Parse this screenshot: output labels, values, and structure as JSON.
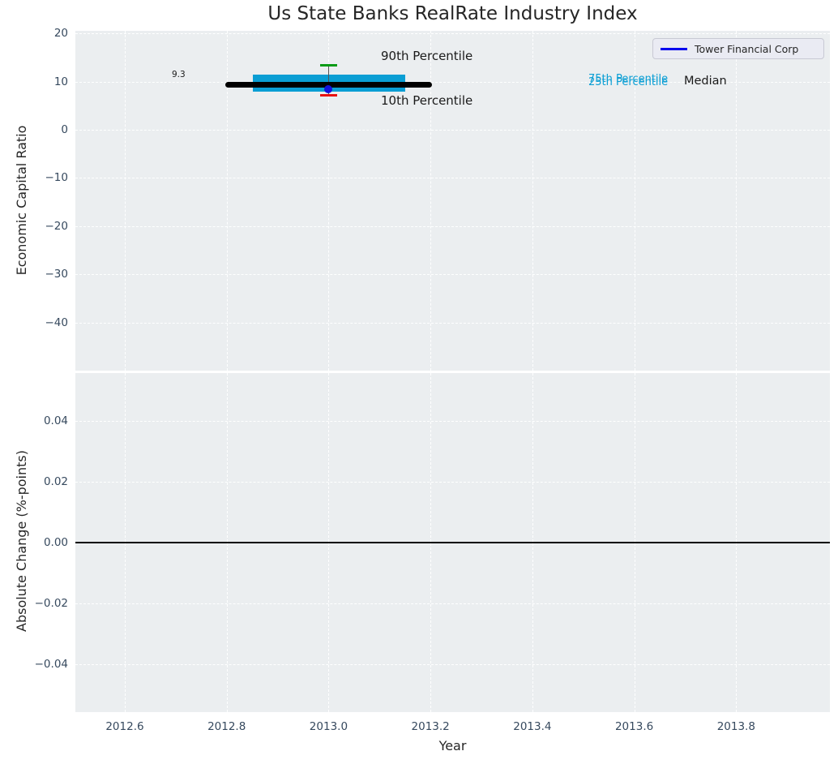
{
  "figure": {
    "background": "#ffffff",
    "plot_background": "#ebeef0",
    "grid_color": "#ffffff",
    "tick_color": "#36495e",
    "text_color": "#262626"
  },
  "chart_data": [
    {
      "type": "box-timeline",
      "title": "Us State Banks RealRate Industry Index",
      "xlabel": "Year",
      "ylabel": "Economic Capital Ratio",
      "xlim": [
        2012.503,
        2013.984
      ],
      "ylim": [
        -50.0,
        20.54
      ],
      "grid": "white-dashed",
      "legend": {
        "label": "Tower Financial Corp",
        "line_color": "#0000ee",
        "position": "upper-right"
      },
      "xticks": {
        "values": [
          2012.6,
          2012.8,
          2013.0,
          2013.2,
          2013.4,
          2013.6,
          2013.8
        ],
        "labels": [
          "2012.6",
          "2012.8",
          "2013.0",
          "2013.2",
          "2013.4",
          "2013.6",
          "2013.8"
        ]
      },
      "yticks": {
        "values": [
          20,
          10,
          0,
          -10,
          -20,
          -30,
          -40
        ],
        "labels": [
          "20",
          "10",
          "0",
          "−10",
          "−20",
          "−30",
          "−40"
        ]
      },
      "series": [
        {
          "name": "Tower Financial Corp",
          "x": 2013.0,
          "y": 8.4,
          "marker": "circle",
          "color": "#1212dd"
        }
      ],
      "industry_box": {
        "year": 2013.0,
        "median": 9.3,
        "p75": 11.4,
        "p25": 7.9,
        "p90": 13.4,
        "p10": 7.1,
        "median_span": [
          2012.797,
          2013.203
        ],
        "box_span": [
          2012.852,
          2013.15
        ],
        "cap_span": [
          2012.983,
          2013.017
        ],
        "median_color": "#000000",
        "box_color": "#0a9ed4",
        "p90_color": "#089b16",
        "p10_color": "#e81111"
      },
      "annotations": {
        "median_value": "9.3",
        "p90": "90th Percentile",
        "p10": "10th Percentile",
        "p75": "75th Percentile",
        "p25": "25th Percentile",
        "median": "Median"
      }
    },
    {
      "type": "reference-line",
      "ylabel": "Absolute Change (%-points)",
      "ylim": [
        -0.0557,
        0.0557
      ],
      "yticks": {
        "values": [
          0.04,
          0.02,
          0.0,
          -0.02,
          -0.04
        ],
        "labels": [
          "0.04",
          "0.02",
          "0.00",
          "−0.02",
          "−0.04"
        ]
      },
      "zero_line": 0.0,
      "zero_line_color": "#000000"
    }
  ]
}
